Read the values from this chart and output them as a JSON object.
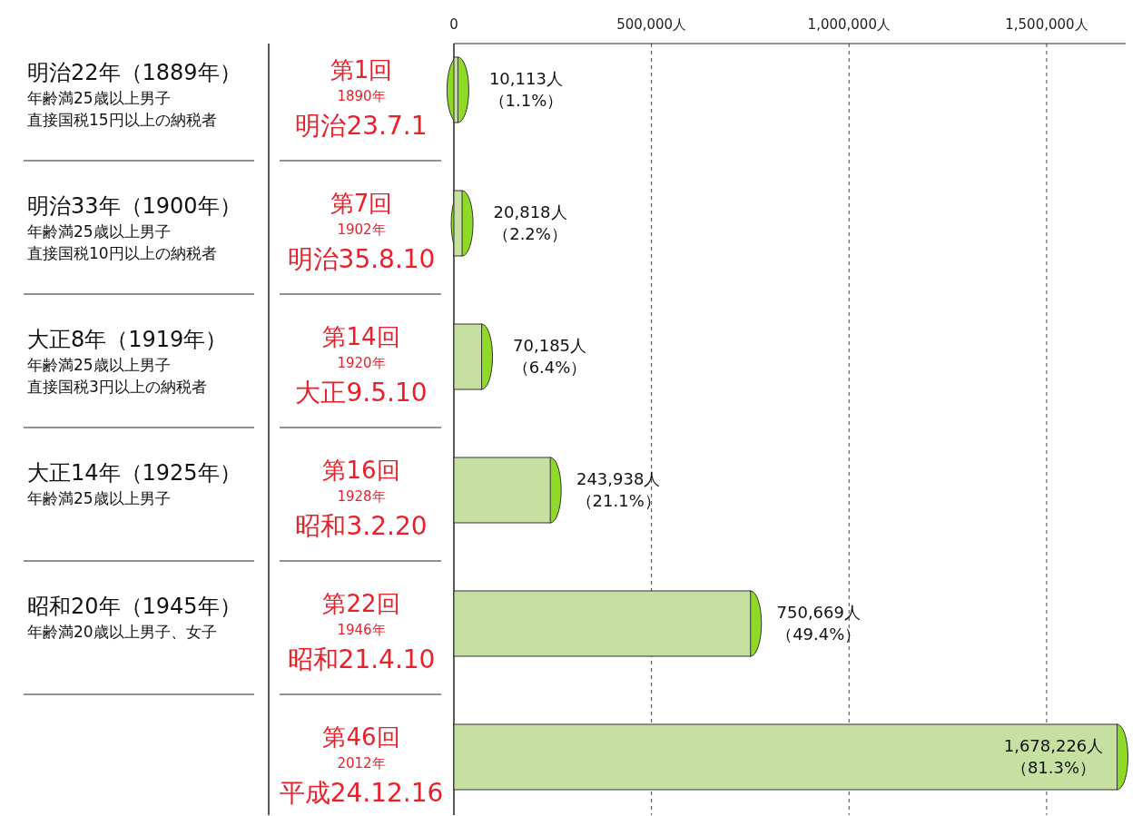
{
  "chart_data": {
    "type": "bar",
    "orientation": "horizontal",
    "categories": [
      "第1回",
      "第7回",
      "第14回",
      "第16回",
      "第22回",
      "第46回"
    ],
    "series": [
      {
        "color": "#c5e0a0",
        "values": [
          10113,
          20818,
          70185,
          243938,
          750669,
          1678226
        ],
        "value_labels": [
          "10,113人（1.1%）",
          "20,818人（2.2%）",
          "70,185人（6.4%）",
          "243,938人（21.1%）",
          "750,669人（49.4%）",
          "1,678,226人（81.3%）"
        ]
      }
    ],
    "xlim": [
      0,
      1700000
    ],
    "xticks": [
      0,
      {
        "value": 500000,
        "label": "500,000人"
      },
      {
        "value": 1000000,
        "label": "1,000,000人"
      },
      {
        "value": 1500000,
        "label": "1,500,000人"
      }
    ],
    "grid": "x",
    "line_style": "dashed",
    "annotations": [
      "1890年",
      "明治23.7.1",
      "明治22年（1889年）",
      "年齢満25歳以上男子",
      "直接国税15円以上の納税者",
      "1902年",
      "明治35.8.10",
      "明治33年（1900年）",
      "年齢満25歳以上男子",
      "直接国税10円以上の納税者",
      "1920年",
      "大正9.5.10",
      "大正8年（1919年）",
      "年齢満25歳以上男子",
      "直接国税3円以上の納税者",
      "1928年",
      "昭和3.2.20",
      "大正14年（1925年）",
      "年齢満25歳以上男子",
      "1946年",
      "昭和21.4.10",
      "昭和20年（1945年）",
      "年齢満20歳以上男子、女子",
      "2012年",
      "平成24.12.16"
    ]
  }
}
